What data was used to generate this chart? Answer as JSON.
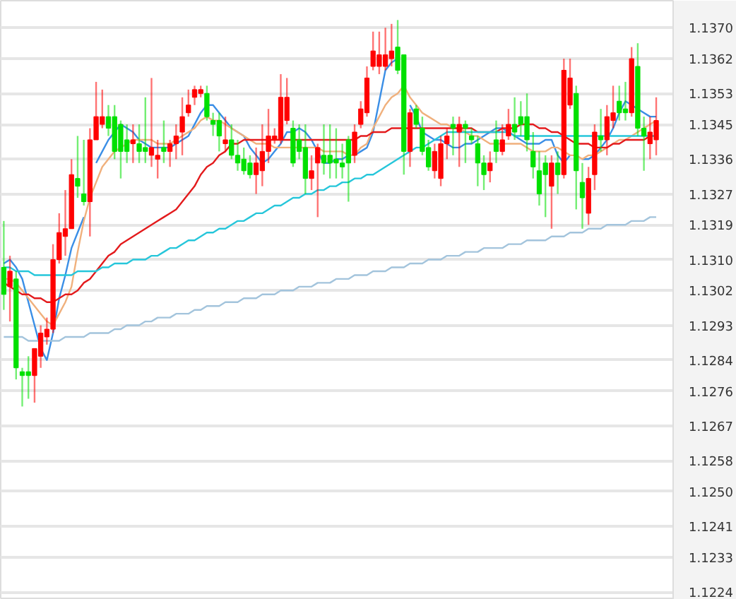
{
  "chart_data": {
    "type": "candlestick",
    "categories": [
      null,
      null,
      null,
      null,
      null,
      null,
      null,
      null,
      null,
      null,
      null,
      null,
      null,
      null,
      null,
      null,
      null,
      null,
      null,
      null,
      null,
      null,
      null,
      null,
      null,
      null,
      null,
      null,
      null,
      null,
      null,
      null,
      null,
      null,
      null,
      null,
      null,
      null,
      null,
      null,
      null,
      null,
      null,
      null,
      null,
      null,
      null,
      null,
      null,
      null,
      null,
      null,
      null,
      null,
      null,
      null,
      null,
      null,
      null,
      null,
      null,
      null,
      null,
      null,
      null,
      null,
      null,
      null,
      null,
      null,
      null,
      null,
      null,
      null,
      null,
      null,
      null,
      null,
      null,
      null,
      null,
      null,
      null,
      null,
      null,
      null,
      null,
      null,
      null,
      null,
      null,
      null,
      null,
      null,
      null,
      null,
      null,
      null,
      null,
      null,
      null,
      null,
      null,
      null,
      null,
      null,
      null
    ],
    "ohlc": [
      [
        1.1308,
        1.132,
        1.1297,
        1.1301
      ],
      [
        1.1303,
        1.1311,
        1.1294,
        1.1307
      ],
      [
        1.1305,
        1.1307,
        1.1279,
        1.1282
      ],
      [
        1.1281,
        1.1282,
        1.1272,
        1.128
      ],
      [
        1.1281,
        1.1285,
        1.1274,
        1.128
      ],
      [
        1.128,
        1.1287,
        1.1273,
        1.1287
      ],
      [
        1.1285,
        1.1293,
        1.1282,
        1.1291
      ],
      [
        1.129,
        1.1295,
        1.1288,
        1.1292
      ],
      [
        1.1292,
        1.1314,
        1.1291,
        1.131
      ],
      [
        1.131,
        1.1322,
        1.1309,
        1.1317
      ],
      [
        1.1316,
        1.1328,
        1.1311,
        1.1318
      ],
      [
        1.1318,
        1.1336,
        1.1318,
        1.1332
      ],
      [
        1.1331,
        1.1342,
        1.1326,
        1.1329
      ],
      [
        1.1327,
        1.1341,
        1.1324,
        1.1325
      ],
      [
        1.1325,
        1.1344,
        1.1316,
        1.1341
      ],
      [
        1.1341,
        1.1356,
        1.1341,
        1.1347
      ],
      [
        1.1345,
        1.1354,
        1.1344,
        1.1347
      ],
      [
        1.1347,
        1.135,
        1.1342,
        1.1344
      ],
      [
        1.1347,
        1.135,
        1.1336,
        1.1338
      ],
      [
        1.1345,
        1.1346,
        1.1331,
        1.1338
      ],
      [
        1.1341,
        1.1345,
        1.1335,
        1.1338
      ],
      [
        1.134,
        1.1345,
        1.1335,
        1.1341
      ],
      [
        1.134,
        1.1345,
        1.1335,
        1.1338
      ],
      [
        1.1339,
        1.1352,
        1.1335,
        1.1338
      ],
      [
        1.1337,
        1.1357,
        1.1334,
        1.1339
      ],
      [
        1.1336,
        1.1341,
        1.1331,
        1.1337
      ],
      [
        1.1339,
        1.1346,
        1.1335,
        1.1338
      ],
      [
        1.1338,
        1.1341,
        1.1334,
        1.134
      ],
      [
        1.134,
        1.1345,
        1.1336,
        1.1342
      ],
      [
        1.1343,
        1.1352,
        1.1337,
        1.1347
      ],
      [
        1.1348,
        1.1354,
        1.1347,
        1.135
      ],
      [
        1.1352,
        1.1355,
        1.135,
        1.1354
      ],
      [
        1.1353,
        1.1355,
        1.1352,
        1.1354
      ],
      [
        1.1353,
        1.1355,
        1.1346,
        1.1347
      ],
      [
        1.1346,
        1.1348,
        1.1342,
        1.1345
      ],
      [
        1.1346,
        1.1348,
        1.1338,
        1.1342
      ],
      [
        1.134,
        1.1347,
        1.1338,
        1.1341
      ],
      [
        1.1341,
        1.1345,
        1.1336,
        1.1337
      ],
      [
        1.1337,
        1.1341,
        1.1333,
        1.1335
      ],
      [
        1.1336,
        1.1339,
        1.1332,
        1.1333
      ],
      [
        1.1335,
        1.1337,
        1.1331,
        1.1332
      ],
      [
        1.1332,
        1.1339,
        1.1327,
        1.1335
      ],
      [
        1.1333,
        1.1345,
        1.1329,
        1.1338
      ],
      [
        1.1338,
        1.1349,
        1.1335,
        1.1342
      ],
      [
        1.1341,
        1.1344,
        1.134,
        1.1342
      ],
      [
        1.1341,
        1.1358,
        1.134,
        1.1352
      ],
      [
        1.1346,
        1.1357,
        1.1345,
        1.1352
      ],
      [
        1.1344,
        1.1346,
        1.1334,
        1.1335
      ],
      [
        1.1341,
        1.1345,
        1.1336,
        1.1338
      ],
      [
        1.1339,
        1.1345,
        1.1327,
        1.1331
      ],
      [
        1.1331,
        1.1337,
        1.1328,
        1.1333
      ],
      [
        1.1335,
        1.134,
        1.1321,
        1.1339
      ],
      [
        1.1337,
        1.1345,
        1.1332,
        1.1335
      ],
      [
        1.1337,
        1.1345,
        1.1331,
        1.1335
      ],
      [
        1.1336,
        1.1344,
        1.1331,
        1.1335
      ],
      [
        1.1335,
        1.134,
        1.1331,
        1.1334
      ],
      [
        1.1341,
        1.1342,
        1.1325,
        1.1335
      ],
      [
        1.1337,
        1.1345,
        1.1335,
        1.1343
      ],
      [
        1.1345,
        1.1351,
        1.1344,
        1.1349
      ],
      [
        1.1348,
        1.136,
        1.1347,
        1.1357
      ],
      [
        1.136,
        1.1369,
        1.1359,
        1.1364
      ],
      [
        1.136,
        1.1369,
        1.1358,
        1.1363
      ],
      [
        1.136,
        1.137,
        1.1359,
        1.1363
      ],
      [
        1.1362,
        1.1371,
        1.136,
        1.1364
      ],
      [
        1.1365,
        1.1372,
        1.1358,
        1.1359
      ],
      [
        1.1363,
        1.1363,
        1.1332,
        1.1338
      ],
      [
        1.1338,
        1.1349,
        1.1334,
        1.1348
      ],
      [
        1.1349,
        1.135,
        1.1344,
        1.1345
      ],
      [
        1.1344,
        1.1347,
        1.1337,
        1.1338
      ],
      [
        1.1339,
        1.1341,
        1.1333,
        1.1334
      ],
      [
        1.1333,
        1.134,
        1.1331,
        1.1338
      ],
      [
        1.1331,
        1.1342,
        1.1329,
        1.134
      ],
      [
        1.134,
        1.1344,
        1.1336,
        1.1342
      ],
      [
        1.1345,
        1.1347,
        1.1337,
        1.1344
      ],
      [
        1.1343,
        1.1347,
        1.1334,
        1.1345
      ],
      [
        1.1345,
        1.1346,
        1.1335,
        1.1344
      ],
      [
        1.1342,
        1.1344,
        1.134,
        1.1341
      ],
      [
        1.134,
        1.1342,
        1.1329,
        1.1335
      ],
      [
        1.1335,
        1.1337,
        1.1328,
        1.1332
      ],
      [
        1.1333,
        1.1338,
        1.133,
        1.1335
      ],
      [
        1.1341,
        1.1346,
        1.1335,
        1.1338
      ],
      [
        1.1338,
        1.1345,
        1.1337,
        1.1341
      ],
      [
        1.1342,
        1.1349,
        1.1341,
        1.1345
      ],
      [
        1.1345,
        1.1352,
        1.1341,
        1.1343
      ],
      [
        1.1347,
        1.1351,
        1.1342,
        1.1345
      ],
      [
        1.1347,
        1.1353,
        1.1338,
        1.1341
      ],
      [
        1.1338,
        1.1343,
        1.1331,
        1.1334
      ],
      [
        1.1333,
        1.1338,
        1.1324,
        1.1327
      ],
      [
        1.1335,
        1.1337,
        1.1321,
        1.1332
      ],
      [
        1.1329,
        1.1337,
        1.1318,
        1.1335
      ],
      [
        1.1335,
        1.1338,
        1.1327,
        1.1332
      ],
      [
        1.1332,
        1.1362,
        1.1331,
        1.1359
      ],
      [
        1.135,
        1.1362,
        1.1349,
        1.1357
      ],
      [
        1.1353,
        1.1355,
        1.1323,
        1.1333
      ],
      [
        1.133,
        1.1335,
        1.1318,
        1.1326
      ],
      [
        1.1322,
        1.1334,
        1.1319,
        1.1331
      ],
      [
        1.1332,
        1.1345,
        1.1328,
        1.1343
      ],
      [
        1.1342,
        1.1349,
        1.1338,
        1.1341
      ],
      [
        1.1341,
        1.135,
        1.1337,
        1.1347
      ],
      [
        1.1346,
        1.1355,
        1.1344,
        1.1348
      ],
      [
        1.1351,
        1.1355,
        1.1346,
        1.1348
      ],
      [
        1.1349,
        1.1356,
        1.1346,
        1.1348
      ],
      [
        1.1348,
        1.1365,
        1.1347,
        1.1362
      ],
      [
        1.136,
        1.1366,
        1.1342,
        1.1344
      ],
      [
        1.1344,
        1.1347,
        1.1333,
        1.1342
      ],
      [
        1.134,
        1.1347,
        1.1336,
        1.1343
      ],
      [
        1.1341,
        1.1352,
        1.1337,
        1.1346
      ]
    ],
    "colors": [
      "#00e000",
      "#ff0000",
      "#00e000",
      "#00e000",
      "#00e000",
      "#ff0000",
      "#ff0000",
      "#ff0000",
      "#ff0000",
      "#ff0000",
      "#ff0000",
      "#ff0000",
      "#00e000",
      "#00e000",
      "#ff0000",
      "#ff0000",
      "#ff0000",
      "#00e000",
      "#00e000",
      "#00e000",
      "#00e000",
      "#ff0000",
      "#00e000",
      "#00e000",
      "#ff0000",
      "#ff0000",
      "#00e000",
      "#ff0000",
      "#ff0000",
      "#ff0000",
      "#ff0000",
      "#ff0000",
      "#ff0000",
      "#00e000",
      "#00e000",
      "#00e000",
      "#ff0000",
      "#00e000",
      "#00e000",
      "#00e000",
      "#00e000",
      "#ff0000",
      "#ff0000",
      "#ff0000",
      "#ff0000",
      "#ff0000",
      "#ff0000",
      "#00e000",
      "#00e000",
      "#00e000",
      "#ff0000",
      "#ff0000",
      "#00e000",
      "#00e000",
      "#00e000",
      "#00e000",
      "#00e000",
      "#ff0000",
      "#ff0000",
      "#ff0000",
      "#ff0000",
      "#ff0000",
      "#ff0000",
      "#ff0000",
      "#00e000",
      "#00e000",
      "#ff0000",
      "#00e000",
      "#00e000",
      "#00e000",
      "#ff0000",
      "#ff0000",
      "#ff0000",
      "#00e000",
      "#ff0000",
      "#00e000",
      "#00e000",
      "#00e000",
      "#00e000",
      "#ff0000",
      "#00e000",
      "#ff0000",
      "#ff0000",
      "#00e000",
      "#00e000",
      "#00e000",
      "#00e000",
      "#00e000",
      "#00e000",
      "#ff0000",
      "#00e000",
      "#ff0000",
      "#ff0000",
      "#00e000",
      "#00e000",
      "#ff0000",
      "#ff0000",
      "#00e000",
      "#ff0000",
      "#ff0000",
      "#00e000",
      "#00e000",
      "#ff0000",
      "#00e000",
      "#00e000",
      "#ff0000",
      "#ff0000"
    ],
    "series": [
      {
        "type": "line",
        "color": "#3a8ee6",
        "values": [
          1.1309,
          1.131,
          1.1308,
          1.1305,
          1.1299,
          1.1293,
          1.1287,
          1.1284,
          1.1291,
          1.13,
          1.1306,
          1.1313,
          1.1317,
          1.1321,
          null,
          1.1335,
          1.1338,
          1.1341,
          1.1343,
          1.1345,
          1.1344,
          1.1343,
          1.1341,
          1.134,
          1.1339,
          1.1339,
          1.1339,
          1.1339,
          1.134,
          1.1341,
          1.1342,
          1.1345,
          1.1348,
          1.135,
          1.135,
          1.1348,
          1.1346,
          1.1344,
          1.1343,
          1.1342,
          1.1339,
          1.1337,
          1.1335,
          1.1336,
          1.1338,
          1.134,
          1.1343,
          1.1343,
          1.1344,
          1.1343,
          1.1341,
          1.1338,
          1.1335,
          1.1335,
          1.1336,
          1.1336,
          1.1337,
          1.1337,
          1.1338,
          1.1339,
          1.1343,
          1.1351,
          1.1359,
          1.1361,
          1.1362,
          null,
          1.135,
          1.1347,
          1.1343,
          1.1342,
          1.1341,
          1.1341,
          1.134,
          1.1339,
          1.1339,
          1.134,
          1.134,
          1.1341,
          1.1342,
          1.1343,
          1.1344,
          1.1344,
          1.1343,
          1.1342,
          1.1341,
          1.134,
          1.134,
          1.134,
          1.1341,
          1.1341,
          1.1337,
          1.1335,
          1.1337,
          null,
          1.1336,
          1.1336,
          1.1337,
          1.1339,
          1.1341,
          1.1344,
          1.1348,
          1.1351,
          1.135,
          1.1349,
          1.1348,
          1.1347,
          1.1347
        ]
      },
      {
        "type": "line",
        "color": "#f0b07c",
        "values": [
          1.1305,
          1.1305,
          1.1304,
          1.1302,
          1.13,
          1.1298,
          1.1296,
          1.1294,
          1.1293,
          1.1296,
          1.1299,
          1.1303,
          1.1312,
          1.132,
          1.1326,
          1.133,
          1.1334,
          1.1336,
          1.1338,
          1.1339,
          1.134,
          1.1341,
          1.1341,
          1.1341,
          1.1341,
          1.134,
          1.134,
          1.134,
          1.1341,
          1.1342,
          1.1343,
          1.1344,
          1.1346,
          1.1347,
          1.1346,
          1.1346,
          1.1345,
          1.1344,
          1.1343,
          1.1342,
          1.1341,
          1.134,
          1.134,
          1.134,
          1.1339,
          1.1339,
          1.1339,
          1.1339,
          1.1339,
          1.1339,
          1.1339,
          1.1339,
          1.1338,
          1.1338,
          1.1338,
          1.1338,
          1.1337,
          1.1337,
          1.1339,
          1.134,
          1.1344,
          1.1347,
          1.135,
          1.1352,
          1.1353,
          1.1355,
          1.1352,
          1.135,
          1.1348,
          1.1347,
          1.1346,
          1.1345,
          1.1345,
          1.1344,
          1.1344,
          1.1343,
          1.1342,
          1.1342,
          1.1341,
          1.134,
          1.134,
          1.134,
          1.134,
          1.134,
          1.134,
          1.1339,
          1.1338,
          1.1338,
          1.1338,
          1.1339,
          1.1339,
          1.1338,
          1.1337,
          1.1337,
          1.1336,
          1.1337,
          1.1337,
          1.1338,
          1.1339,
          1.134,
          1.1341,
          1.1341,
          1.1342,
          1.1343,
          1.1344,
          1.1345,
          1.1346
        ]
      },
      {
        "type": "line",
        "color": "#e31a1c",
        "values": [
          1.1304,
          1.1303,
          1.1302,
          1.1301,
          1.1301,
          1.13,
          1.13,
          1.1299,
          1.1299,
          1.13,
          1.1301,
          1.1301,
          1.1302,
          1.1304,
          1.1305,
          1.1307,
          1.1309,
          1.1311,
          1.1312,
          1.1314,
          1.1315,
          1.1316,
          1.1317,
          1.1318,
          1.1319,
          1.132,
          1.1321,
          1.1322,
          1.1323,
          1.1325,
          1.1327,
          1.1329,
          1.1332,
          1.1334,
          1.1335,
          1.1337,
          1.1338,
          1.134,
          1.134,
          1.1341,
          1.1341,
          1.1341,
          1.1341,
          1.1341,
          1.1341,
          1.1341,
          1.1341,
          1.1341,
          1.1341,
          1.1341,
          1.1341,
          1.1341,
          1.1341,
          1.1341,
          1.1341,
          1.1341,
          1.1341,
          1.1341,
          1.1342,
          1.1342,
          1.1343,
          1.1343,
          1.1343,
          1.1344,
          1.1344,
          1.1344,
          1.1344,
          1.1344,
          1.1344,
          1.1344,
          1.1344,
          1.1344,
          1.1344,
          1.1344,
          1.1344,
          1.1344,
          1.1344,
          1.1343,
          1.1343,
          1.1343,
          1.1343,
          1.1344,
          1.1344,
          1.1344,
          1.1345,
          1.1345,
          1.1345,
          1.1344,
          1.1344,
          1.1343,
          1.1343,
          1.1342,
          1.1341,
          1.134,
          1.134,
          1.134,
          1.1339,
          1.1339,
          1.1339,
          1.134,
          1.134,
          1.1341,
          1.1341,
          1.1341,
          1.1341,
          1.1342,
          1.1342
        ]
      },
      {
        "type": "line",
        "color": "#26c6da",
        "values": [
          1.1308,
          1.1308,
          1.1307,
          1.1307,
          1.1307,
          1.1306,
          1.1306,
          1.1306,
          1.1306,
          1.1306,
          1.1306,
          1.1306,
          1.1307,
          1.1307,
          1.1307,
          1.1307,
          1.1308,
          1.1308,
          1.1309,
          1.1309,
          1.1309,
          1.131,
          1.131,
          1.131,
          1.1311,
          1.1311,
          1.1312,
          1.1313,
          1.1313,
          1.1314,
          1.1315,
          1.1315,
          1.1316,
          1.1317,
          1.1317,
          1.1318,
          1.1318,
          1.1319,
          1.132,
          1.132,
          1.1321,
          1.1322,
          1.1322,
          1.1323,
          1.1324,
          1.1324,
          1.1325,
          1.1326,
          1.1326,
          1.1327,
          1.1327,
          1.1328,
          1.1328,
          1.1329,
          1.1329,
          1.133,
          1.133,
          1.1331,
          1.1331,
          1.1332,
          1.1332,
          1.1333,
          1.1334,
          1.1335,
          1.1336,
          1.1337,
          1.1338,
          1.1339,
          1.1339,
          1.134,
          1.1341,
          1.1342,
          1.1343,
          1.1343,
          1.1343,
          1.1343,
          1.1343,
          1.1343,
          1.1343,
          1.1343,
          1.1343,
          1.1343,
          1.1343,
          1.1342,
          1.1342,
          1.1342,
          1.1342,
          1.1342,
          1.1342,
          1.1342,
          1.1342,
          1.1342,
          1.1342,
          1.1342,
          1.1342,
          1.1342,
          1.1342,
          1.1342,
          1.1342,
          1.1342,
          1.1342,
          1.1342,
          1.1342,
          1.1342,
          1.1342,
          1.1342,
          1.1342
        ]
      },
      {
        "type": "line",
        "color": "#a3c4dc",
        "values": [
          1.129,
          1.129,
          1.129,
          1.129,
          1.1289,
          1.1289,
          1.1289,
          1.1289,
          1.1289,
          1.1289,
          1.129,
          1.129,
          1.129,
          1.129,
          1.1291,
          1.1291,
          1.1291,
          1.1291,
          1.1292,
          1.1292,
          1.1293,
          1.1293,
          1.1293,
          1.1294,
          1.1294,
          1.1295,
          1.1295,
          1.1295,
          1.1296,
          1.1296,
          1.1296,
          1.1297,
          1.1297,
          1.1298,
          1.1298,
          1.1298,
          1.1299,
          1.1299,
          1.1299,
          1.13,
          1.13,
          1.13,
          1.1301,
          1.1301,
          1.1301,
          1.1302,
          1.1302,
          1.1302,
          1.1303,
          1.1303,
          1.1303,
          1.1304,
          1.1304,
          1.1304,
          1.1305,
          1.1305,
          1.1305,
          1.1306,
          1.1306,
          1.1306,
          1.1307,
          1.1307,
          1.1307,
          1.1308,
          1.1308,
          1.1308,
          1.1309,
          1.1309,
          1.1309,
          1.131,
          1.131,
          1.131,
          1.1311,
          1.1311,
          1.1311,
          1.1312,
          1.1312,
          1.1312,
          1.1313,
          1.1313,
          1.1313,
          1.1313,
          1.1314,
          1.1314,
          1.1314,
          1.1315,
          1.1315,
          1.1315,
          1.1315,
          1.1316,
          1.1316,
          1.1316,
          1.1317,
          1.1317,
          1.1317,
          1.1318,
          1.1318,
          1.1318,
          1.1319,
          1.1319,
          1.1319,
          1.1319,
          1.132,
          1.132,
          1.132,
          1.1321,
          1.1321
        ]
      }
    ],
    "ylim": [
      1.1222,
      1.1377
    ],
    "yticks": [
      {
        "value": 1.137,
        "label": "1.1370"
      },
      1.1362,
      1.1353,
      1.1345,
      1.1336,
      1.1327,
      1.1319,
      {
        "value": 1.131,
        "label": "1.1310"
      },
      1.1302,
      1.1293,
      1.1284,
      1.1276,
      1.1267,
      1.1258,
      {
        "value": 1.125,
        "label": "1.1250"
      },
      1.1241,
      1.1233,
      1.1224
    ],
    "grid": "y",
    "tick_labels": "y"
  }
}
